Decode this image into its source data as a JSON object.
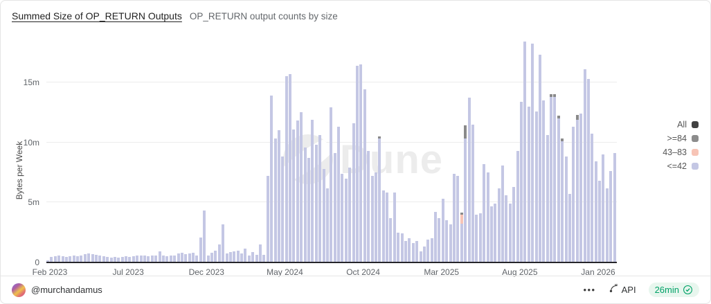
{
  "header": {
    "title": "Summed Size of OP_RETURN Outputs",
    "subtitle": "OP_RETURN output counts by size"
  },
  "watermark": {
    "text": "Dune"
  },
  "chart_data": {
    "type": "bar",
    "stacked": true,
    "title": "Summed Size of OP_RETURN Outputs",
    "ylabel": "Bytes per Week",
    "unit": "million bytes per week",
    "ylim": [
      0,
      18.92
    ],
    "grid": true,
    "legend_position": "right",
    "y_ticks": [
      {
        "label": "0",
        "value": 0
      },
      {
        "label": "5m",
        "value": 5
      },
      {
        "label": "10m",
        "value": 10
      },
      {
        "label": "15m",
        "value": 15
      }
    ],
    "x_ticks": [
      "Feb 2023",
      "Jul 2023",
      "Dec 2023",
      "May 2024",
      "Oct 2024",
      "Mar 2025",
      "Aug 2025",
      "Jan 2026"
    ],
    "legend": [
      {
        "label": "All",
        "color": "#414141"
      },
      {
        "label": ">=84",
        "color": "#8c8c8c"
      },
      {
        "label": "43–83",
        "color": "#f7c4b6"
      },
      {
        "label": "<=42",
        "color": "#c4c7e4"
      }
    ],
    "series": [
      {
        "name": "<=42",
        "color": "#c4c7e4",
        "values": [
          0.2,
          0.45,
          0.5,
          0.55,
          0.5,
          0.45,
          0.5,
          0.55,
          0.5,
          0.6,
          0.7,
          0.75,
          0.7,
          0.65,
          0.6,
          0.5,
          0.45,
          0.4,
          0.45,
          0.4,
          0.45,
          0.5,
          0.45,
          0.5,
          0.55,
          0.6,
          0.55,
          0.5,
          0.55,
          0.6,
          0.9,
          0.55,
          0.5,
          0.55,
          0.6,
          0.75,
          0.8,
          0.7,
          0.75,
          0.8,
          0.55,
          2.1,
          4.3,
          0.6,
          0.8,
          1.0,
          1.5,
          3.2,
          0.75,
          0.85,
          0.95,
          1.0,
          0.75,
          1.15,
          0.55,
          0.85,
          0.65,
          1.5,
          0.65,
          7.2,
          13.9,
          10.3,
          11.0,
          8.8,
          15.5,
          15.7,
          11.1,
          11.8,
          12.5,
          9.6,
          8.7,
          11.9,
          9.8,
          10.6,
          7.8,
          6.2,
          12.9,
          9.1,
          11.3,
          7.4,
          7.0,
          7.9,
          11.6,
          16.4,
          16.5,
          14.4,
          9.3,
          7.2,
          7.5,
          10.35,
          6.0,
          5.8,
          3.7,
          5.8,
          2.5,
          2.4,
          1.8,
          2.0,
          1.6,
          1.8,
          0.95,
          1.3,
          1.9,
          2.0,
          4.2,
          3.7,
          5.3,
          3.5,
          3.2,
          7.4,
          7.2,
          3.25,
          10.3,
          13.7,
          11.5,
          4.0,
          4.1,
          8.2,
          7.5,
          4.7,
          4.9,
          6.2,
          8.1,
          5.6,
          4.9,
          6.3,
          9.3,
          13.4,
          18.4,
          13.0,
          18.2,
          12.6,
          17.3,
          13.5,
          10.6,
          13.8,
          13.8,
          12.0,
          10.1,
          8.8,
          5.7,
          11.3,
          11.9,
          12.4,
          16.1,
          15.3,
          10.7,
          8.4,
          6.8,
          9.0,
          6.2,
          7.6,
          9.1
        ]
      },
      {
        "name": "43–83",
        "color": "#f7c4b6",
        "values_sparse": {
          "111": 0.75
        }
      },
      {
        "name": ">=84",
        "color": "#8a8a8a",
        "values_sparse": {
          "89": 0.15,
          "111": 0.15,
          "112": 1.1,
          "135": 0.2,
          "136": 0.2,
          "137": 0.2,
          "138": 0.2,
          "142": 0.4
        }
      }
    ]
  },
  "footer": {
    "author": "@murchandamus",
    "menu_label": "•••",
    "api_label": "API",
    "refresh_label": "26min"
  }
}
